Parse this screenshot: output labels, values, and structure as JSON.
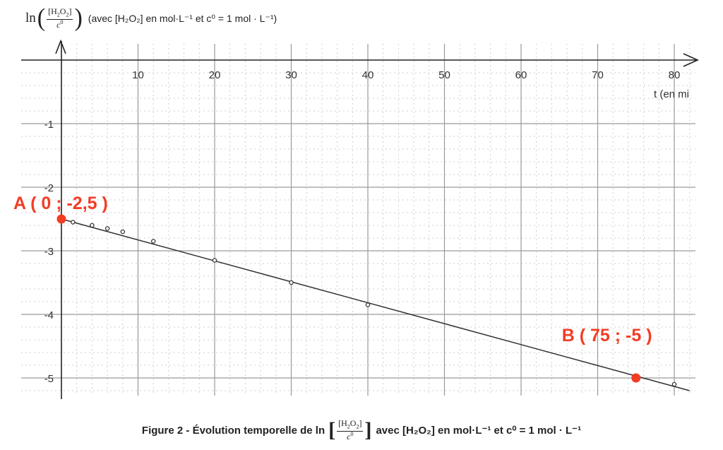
{
  "chart_data": {
    "type": "line",
    "x_axis_label": "t (en mi",
    "x_ticks": [
      10,
      20,
      30,
      40,
      50,
      60,
      70,
      80
    ],
    "y_ticks": [
      -1,
      -2,
      -3,
      -4,
      -5
    ],
    "x_range": [
      0,
      83
    ],
    "y_range": [
      -5.2,
      0
    ],
    "grid": true,
    "measured_points": [
      {
        "x": 1.5,
        "y": -2.55
      },
      {
        "x": 4,
        "y": -2.6
      },
      {
        "x": 6,
        "y": -2.65
      },
      {
        "x": 8,
        "y": -2.7
      },
      {
        "x": 12,
        "y": -2.85
      },
      {
        "x": 20,
        "y": -3.15
      },
      {
        "x": 30,
        "y": -3.5
      },
      {
        "x": 40,
        "y": -3.85
      },
      {
        "x": 80,
        "y": -5.1
      }
    ],
    "trend_line": {
      "x": [
        0,
        82
      ],
      "y": [
        -2.5,
        -5.2
      ]
    },
    "highlighted_points": [
      {
        "label": "A ( 0 ; -2,5 )",
        "x": 0,
        "y": -2.5
      },
      {
        "label": "B ( 75 ; -5 )",
        "x": 75,
        "y": -5
      }
    ]
  },
  "y_axis_title": {
    "ln": "ln",
    "num_open": "[H",
    "num_sub1": "2",
    "num_mid": "O",
    "num_sub2": "2",
    "num_close": "]",
    "den_base": "c",
    "den_sup": "0",
    "note": "(avec [H₂O₂] en mol·L⁻¹ et c⁰ = 1 mol · L⁻¹)"
  },
  "caption": {
    "prefix": "Figure 2 - Évolution temporelle de ln",
    "suffix": "avec [H₂O₂] en mol·L⁻¹ et c⁰ = 1 mol · L⁻¹"
  },
  "colors": {
    "highlight": "#f23d24",
    "ink": "#222222",
    "grid": "#9a9a9a",
    "minor_grid": "#cfcfcf"
  }
}
